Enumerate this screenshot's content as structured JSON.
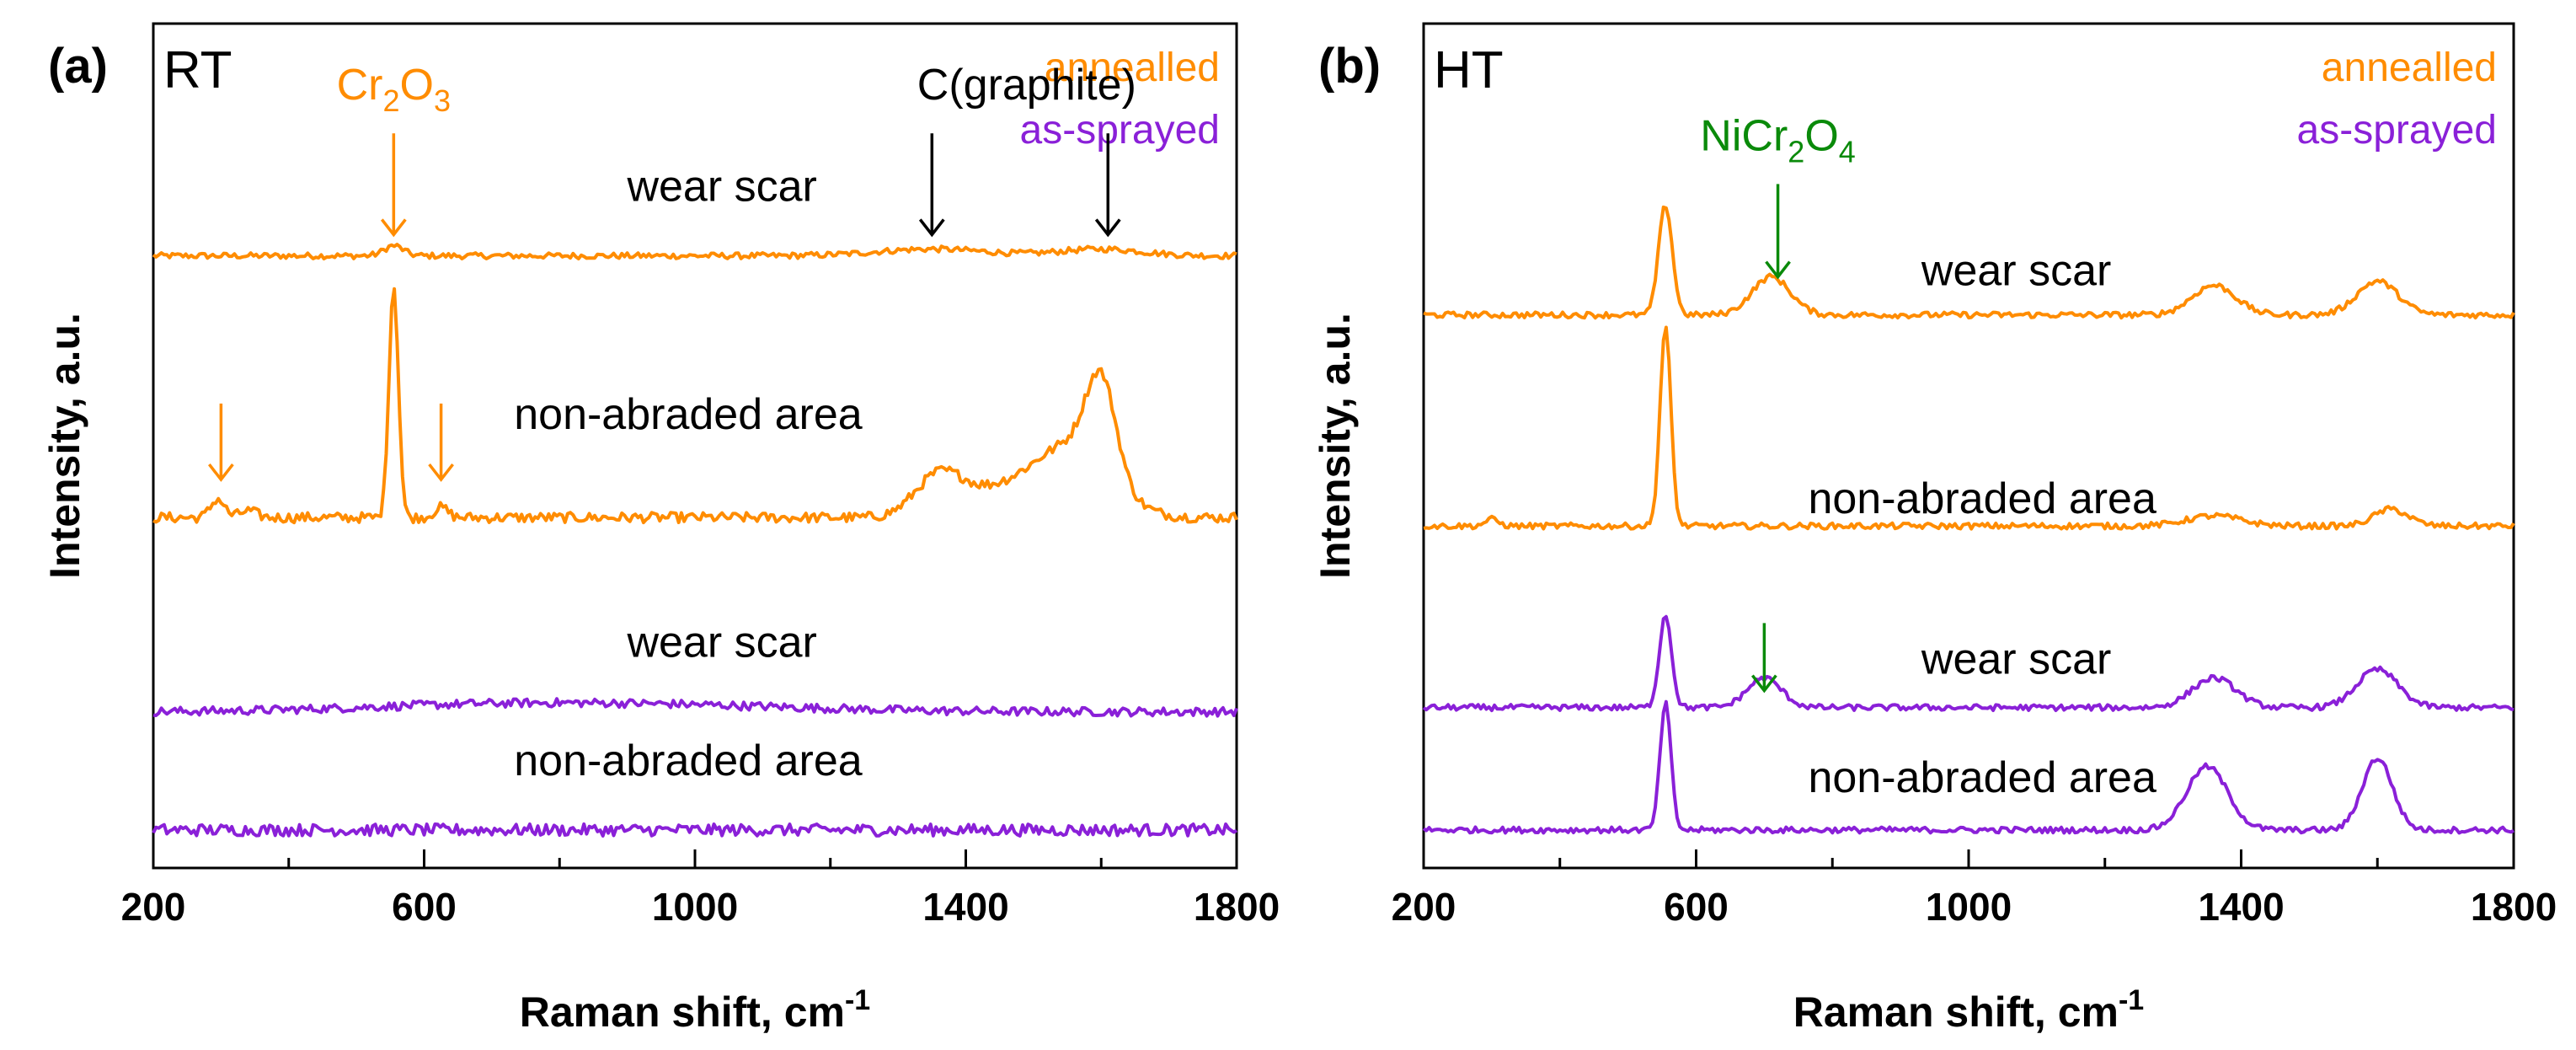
{
  "colors": {
    "annealed": "#ff8c00",
    "as_sprayed": "#8a20d8",
    "nicr2o4": "#0a8a0a",
    "axis": "#000000"
  },
  "chart_data": [
    {
      "type": "line",
      "panel_letter": "(a)",
      "condition": "RT",
      "xlabel": "Raman shift, cm",
      "xlabel_sup": "-1",
      "ylabel": "Intensity, a.u.",
      "xlim": [
        200,
        1800
      ],
      "ylim": [
        0,
        100
      ],
      "xticks": [
        200,
        600,
        1000,
        1400,
        1800
      ],
      "minor_step": 200,
      "legend": [
        {
          "label": "annealled",
          "color_key": "annealed"
        },
        {
          "label": "as-sprayed",
          "color_key": "as_sprayed"
        }
      ],
      "series": [
        {
          "name": "annealed wear scar",
          "group": "annealed",
          "label": "wear scar",
          "baseline": 72.5,
          "noise": 0.35,
          "peaks": [
            [
              555,
              1.2,
              14
            ],
            [
              1350,
              0.8,
              80
            ],
            [
              1600,
              0.8,
              60
            ]
          ]
        },
        {
          "name": "annealed non-abraded area",
          "group": "annealed",
          "label": "non-abraded area",
          "baseline": 41.5,
          "noise": 0.6,
          "peaks": [
            [
              295,
              2.2,
              10
            ],
            [
              340,
              0.8,
              12
            ],
            [
              555,
              27.5,
              7
            ],
            [
              625,
              1.2,
              10
            ],
            [
              1360,
              4.5,
              35
            ],
            [
              1450,
              3,
              60
            ],
            [
              1560,
              8,
              55
            ],
            [
              1600,
              11,
              22
            ]
          ]
        },
        {
          "name": "as-sprayed wear scar",
          "group": "as_sprayed",
          "label": "wear scar",
          "baseline": 18.5,
          "noise": 0.5,
          "peaks": [
            [
              700,
              0.8,
              200
            ],
            [
              1000,
              0.6,
              200
            ]
          ]
        },
        {
          "name": "as-sprayed non-abraded area",
          "group": "as_sprayed",
          "label": "non-abraded area",
          "baseline": 4.5,
          "noise": 0.7,
          "peaks": []
        }
      ],
      "series_labels": [
        {
          "text": "wear scar",
          "x": 1040,
          "y": 79
        },
        {
          "text": "non-abraded area",
          "x": 990,
          "y": 52
        },
        {
          "text": "wear scar",
          "x": 1040,
          "y": 25
        },
        {
          "text": "non-abraded area",
          "x": 990,
          "y": 11
        }
      ],
      "annotations": [
        {
          "kind": "phase",
          "main": "Cr",
          "sub1": "2",
          "mid": "O",
          "sub2": "3",
          "color_key": "annealed",
          "x": 555,
          "y": 91
        },
        {
          "kind": "text",
          "text": "C(graphite)",
          "color_key": "axis",
          "x": 1490,
          "y": 91
        }
      ],
      "arrows": [
        {
          "x": 555,
          "y_top": 87,
          "y_tip": 75,
          "color_key": "annealed"
        },
        {
          "x": 1350,
          "y_top": 87,
          "y_tip": 75,
          "color_key": "axis"
        },
        {
          "x": 1610,
          "y_top": 87,
          "y_tip": 75,
          "color_key": "axis"
        },
        {
          "x": 300,
          "y_top": 55,
          "y_tip": 46,
          "color_key": "annealed"
        },
        {
          "x": 625,
          "y_top": 55,
          "y_tip": 46,
          "color_key": "annealed"
        }
      ]
    },
    {
      "type": "line",
      "panel_letter": "(b)",
      "condition": "HT",
      "xlabel": "Raman shift, cm",
      "xlabel_sup": "-1",
      "ylabel": "Intensity, a.u.",
      "xlim": [
        200,
        1800
      ],
      "ylim": [
        0,
        100
      ],
      "xticks": [
        200,
        600,
        1000,
        1400,
        1800
      ],
      "minor_step": 200,
      "legend": [
        {
          "label": "annealled",
          "color_key": "annealed"
        },
        {
          "label": "as-sprayed",
          "color_key": "as_sprayed"
        }
      ],
      "series": [
        {
          "name": "annealed wear scar",
          "group": "annealed",
          "label": "wear scar",
          "baseline": 65.5,
          "noise": 0.35,
          "peaks": [
            [
              555,
              13,
              10
            ],
            [
              710,
              4.5,
              28
            ],
            [
              1360,
              3.5,
              32
            ],
            [
              1600,
              4,
              30
            ]
          ]
        },
        {
          "name": "annealed non-abraded area",
          "group": "annealed",
          "label": "non-abraded area",
          "baseline": 40.5,
          "noise": 0.35,
          "peaks": [
            [
              300,
              0.8,
              10
            ],
            [
              555,
              23.5,
              8
            ],
            [
              1360,
              1.2,
              40
            ],
            [
              1620,
              2,
              25
            ]
          ]
        },
        {
          "name": "as-sprayed wear scar",
          "group": "as_sprayed",
          "label": "wear scar",
          "baseline": 19,
          "noise": 0.35,
          "peaks": [
            [
              555,
              11,
              9
            ],
            [
              700,
              3.5,
              25
            ],
            [
              1360,
              3.5,
              32
            ],
            [
              1600,
              4.5,
              30
            ]
          ]
        },
        {
          "name": "as-sprayed non-abraded area",
          "group": "as_sprayed",
          "label": "non-abraded area",
          "baseline": 4.5,
          "noise": 0.35,
          "peaks": [
            [
              555,
              15,
              8
            ],
            [
              1350,
              7.5,
              30
            ],
            [
              1600,
              8.5,
              22
            ]
          ]
        }
      ],
      "series_labels": [
        {
          "text": "wear scar",
          "x": 1070,
          "y": 69
        },
        {
          "text": "non-abraded area",
          "x": 1020,
          "y": 42
        },
        {
          "text": "wear scar",
          "x": 1070,
          "y": 23
        },
        {
          "text": "non-abraded area",
          "x": 1020,
          "y": 9
        }
      ],
      "annotations": [
        {
          "kind": "phase",
          "main": "NiCr",
          "sub1": "2",
          "mid": "O",
          "sub2": "4",
          "color_key": "nicr2o4",
          "x": 720,
          "y": 85
        }
      ],
      "arrows": [
        {
          "x": 720,
          "y_top": 81,
          "y_tip": 70,
          "color_key": "nicr2o4"
        },
        {
          "x": 700,
          "y_top": 29,
          "y_tip": 21,
          "color_key": "nicr2o4"
        }
      ]
    }
  ]
}
